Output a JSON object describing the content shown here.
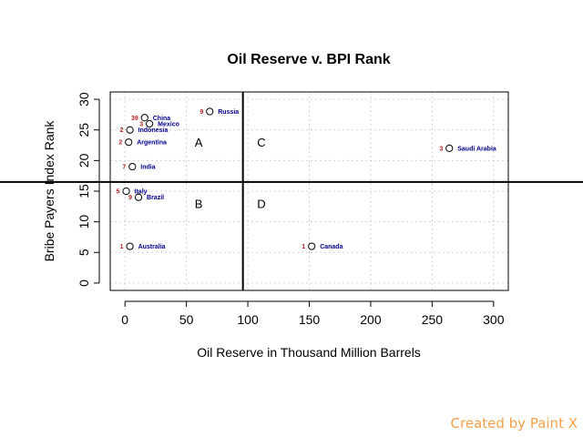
{
  "chart_data": {
    "type": "scatter",
    "title": "Oil Reserve v. BPI Rank",
    "xlabel": "Oil Reserve in Thousand Million Barrels",
    "ylabel": "Bribe Payers Index Rank",
    "xlim": [
      -12,
      312
    ],
    "ylim": [
      -1.2,
      31.2
    ],
    "xticks": [
      0,
      50,
      100,
      150,
      200,
      250,
      300
    ],
    "yticks": [
      0,
      5,
      10,
      15,
      20,
      25,
      30
    ],
    "grid": true,
    "divider_x": 96,
    "divider_y": 16.5,
    "points": [
      {
        "label": "Russia",
        "value": "9",
        "x": 69,
        "y": 28
      },
      {
        "label": "China",
        "value": "39",
        "x": 16,
        "y": 27
      },
      {
        "label": "Mexico",
        "value": "3",
        "x": 20,
        "y": 26
      },
      {
        "label": "Indonesia",
        "value": "2",
        "x": 4,
        "y": 25
      },
      {
        "label": "Argentina",
        "value": "2",
        "x": 3,
        "y": 23
      },
      {
        "label": "India",
        "value": "7",
        "x": 6,
        "y": 19
      },
      {
        "label": "Saudi Arabia",
        "value": "3",
        "x": 264,
        "y": 22
      },
      {
        "label": "Italy",
        "value": "5",
        "x": 1,
        "y": 15
      },
      {
        "label": "Brazil",
        "value": "9",
        "x": 11,
        "y": 14
      },
      {
        "label": "Australia",
        "value": "1",
        "x": 4,
        "y": 6
      },
      {
        "label": "Canada",
        "value": "1",
        "x": 152,
        "y": 6
      }
    ],
    "quadrants": [
      {
        "label": "A",
        "x": 60,
        "y": 23
      },
      {
        "label": "C",
        "x": 111,
        "y": 23
      },
      {
        "label": "B",
        "x": 60,
        "y": 13
      },
      {
        "label": "D",
        "x": 111,
        "y": 13
      }
    ]
  },
  "watermark": "Created by Paint X",
  "colors": {
    "point_label": "#00008b",
    "value_label": "#b22222",
    "grid": "#d3d3d3"
  }
}
